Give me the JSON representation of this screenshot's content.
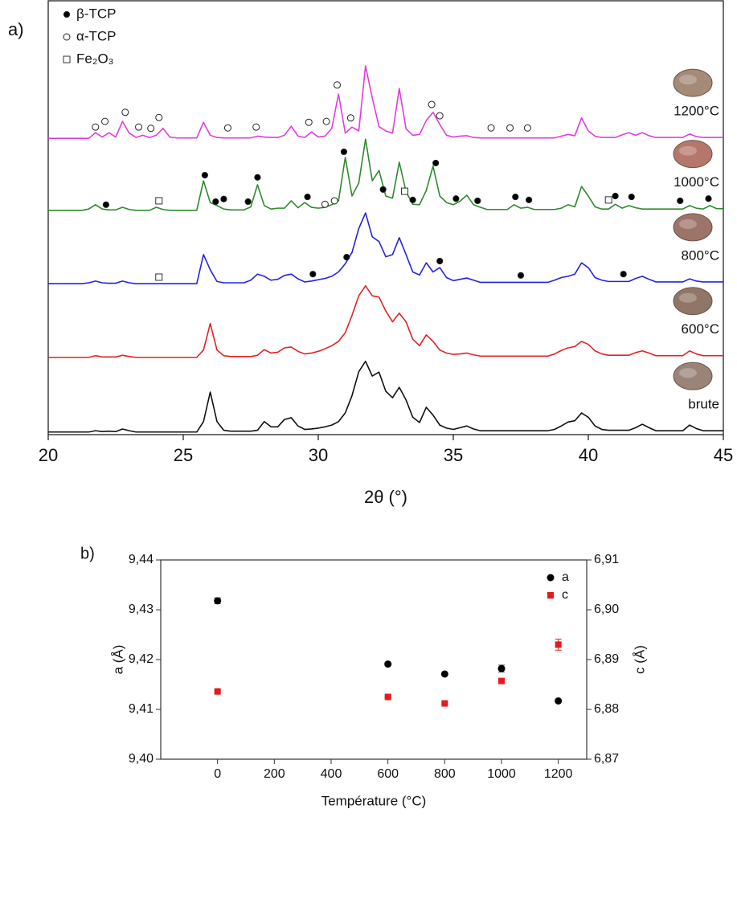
{
  "chart_data": [
    {
      "type": "line",
      "panel_label": "a)",
      "xlabel": "2θ (°)",
      "xlim": [
        20,
        45
      ],
      "xticks": [
        20,
        25,
        30,
        35,
        40,
        45
      ],
      "ylim": [
        0,
        100
      ],
      "x": [
        20,
        20.25,
        20.5,
        20.75,
        21,
        21.25,
        21.5,
        21.75,
        22,
        22.25,
        22.5,
        22.75,
        23,
        23.25,
        23.5,
        23.75,
        24,
        24.25,
        24.5,
        24.75,
        25,
        25.25,
        25.5,
        25.75,
        26,
        26.25,
        26.5,
        26.75,
        27,
        27.25,
        27.5,
        27.75,
        28,
        28.25,
        28.5,
        28.75,
        29,
        29.25,
        29.5,
        29.75,
        30,
        30.25,
        30.5,
        30.75,
        31,
        31.25,
        31.5,
        31.75,
        32,
        32.25,
        32.5,
        32.75,
        33,
        33.25,
        33.5,
        33.75,
        34,
        34.25,
        34.5,
        34.75,
        35,
        35.25,
        35.5,
        35.75,
        36,
        36.25,
        36.5,
        36.75,
        37,
        37.25,
        37.5,
        37.75,
        38,
        38.25,
        38.5,
        38.75,
        39,
        39.25,
        39.5,
        39.75,
        40,
        40.25,
        40.5,
        40.75,
        41,
        41.25,
        41.5,
        41.75,
        42,
        42.25,
        42.5,
        42.75,
        43,
        43.25,
        43.5,
        43.75,
        44,
        44.25,
        44.5,
        44.75,
        45
      ],
      "series": [
        {
          "name": "1200°C",
          "color": "#e33be3",
          "values": [
            68.3,
            68.3,
            68.3,
            68.3,
            68.3,
            68.3,
            68.3,
            69.6,
            68.6,
            69.6,
            68.6,
            72.2,
            69.5,
            68.5,
            69.0,
            68.5,
            69.0,
            70.6,
            68.6,
            68.4,
            68.4,
            68.4,
            68.4,
            72.0,
            69.0,
            68.5,
            68.4,
            68.4,
            68.4,
            68.4,
            68.4,
            68.8,
            68.6,
            68.5,
            68.5,
            69.0,
            71.1,
            68.8,
            68.5,
            69.8,
            68.6,
            68.8,
            70.6,
            78.5,
            69.5,
            70.9,
            70.0,
            85.0,
            77.6,
            71.0,
            70.0,
            69.5,
            79.8,
            70.5,
            69.0,
            69.2,
            72.4,
            74.3,
            71.5,
            69.0,
            68.6,
            68.8,
            68.9,
            68.5,
            68.4,
            68.4,
            68.4,
            68.4,
            68.4,
            68.4,
            68.4,
            68.4,
            68.4,
            68.4,
            68.4,
            68.4,
            68.8,
            69.2,
            68.9,
            73.0,
            70.0,
            68.8,
            68.5,
            68.5,
            68.5,
            69.1,
            69.6,
            69.0,
            69.6,
            68.9,
            68.5,
            68.5,
            68.5,
            68.5,
            68.5,
            69.3,
            68.7,
            68.5,
            68.5,
            68.5,
            68.5
          ]
        },
        {
          "name": "1000°C",
          "color": "#2e8b2e",
          "values": [
            51.7,
            51.7,
            51.7,
            51.7,
            51.7,
            51.7,
            52.0,
            53.0,
            52.0,
            51.8,
            51.8,
            52.4,
            51.9,
            51.7,
            51.7,
            51.7,
            52.4,
            51.9,
            51.7,
            51.7,
            51.7,
            51.7,
            51.7,
            58.5,
            53.5,
            52.8,
            52.0,
            51.8,
            51.8,
            51.8,
            52.5,
            57.6,
            52.8,
            52.0,
            52.2,
            52.2,
            53.9,
            52.3,
            53.5,
            52.4,
            52.2,
            52.4,
            53.0,
            53.9,
            63.9,
            55.0,
            58.0,
            68.1,
            58.5,
            60.9,
            55.0,
            54.5,
            62.8,
            56.0,
            53.1,
            53.0,
            56.3,
            61.9,
            55.0,
            53.5,
            53.0,
            53.8,
            55.2,
            53.0,
            52.4,
            51.9,
            51.9,
            51.9,
            51.9,
            53.0,
            52.2,
            52.4,
            51.9,
            51.9,
            51.9,
            51.9,
            52.2,
            53.0,
            52.5,
            57.2,
            55.0,
            52.5,
            52.0,
            52.0,
            53.1,
            52.2,
            52.8,
            52.3,
            52.0,
            52.0,
            52.0,
            52.0,
            52.0,
            52.0,
            52.0,
            52.8,
            52.2,
            52.0,
            52.8,
            52.1,
            52.1
          ]
        },
        {
          "name": "800°C",
          "color": "#2323e6",
          "values": [
            34.8,
            34.8,
            34.8,
            34.8,
            34.8,
            34.8,
            35.0,
            35.4,
            35.0,
            34.9,
            34.9,
            35.4,
            35.0,
            34.8,
            34.8,
            34.8,
            34.8,
            34.8,
            34.8,
            34.8,
            34.8,
            34.8,
            34.8,
            41.5,
            38.0,
            35.3,
            35.0,
            35.0,
            35.0,
            35.0,
            35.6,
            37.0,
            36.5,
            35.6,
            35.8,
            36.7,
            37.0,
            35.9,
            35.2,
            35.4,
            35.7,
            36.0,
            36.5,
            37.5,
            39.4,
            42.0,
            47.5,
            51.1,
            45.6,
            44.5,
            41.0,
            41.5,
            45.4,
            41.5,
            37.5,
            36.8,
            39.6,
            37.5,
            38.5,
            36.2,
            35.5,
            35.8,
            36.1,
            35.6,
            35.1,
            35.1,
            35.1,
            35.1,
            35.1,
            35.1,
            35.1,
            35.1,
            35.1,
            35.1,
            35.1,
            35.6,
            36.2,
            36.5,
            37.0,
            39.6,
            38.5,
            36.2,
            35.6,
            35.3,
            35.3,
            35.3,
            35.3,
            36.0,
            36.5,
            35.8,
            35.2,
            35.2,
            35.2,
            35.2,
            35.2,
            35.9,
            35.4,
            35.2,
            35.2,
            35.2,
            35.2
          ]
        },
        {
          "name": "600°C",
          "color": "#e52222",
          "values": [
            17.8,
            17.8,
            17.8,
            17.8,
            17.8,
            17.8,
            17.8,
            18.2,
            17.9,
            17.9,
            17.9,
            18.3,
            18.0,
            17.8,
            17.8,
            17.8,
            17.8,
            17.8,
            17.8,
            17.8,
            17.8,
            17.8,
            17.8,
            19.5,
            25.6,
            19.5,
            18.2,
            18.0,
            18.0,
            18.0,
            18.0,
            18.3,
            19.6,
            18.8,
            19.0,
            20.0,
            20.2,
            19.2,
            18.6,
            18.8,
            19.2,
            19.8,
            20.5,
            21.5,
            23.5,
            27.5,
            32.0,
            34.3,
            32.0,
            31.7,
            28.5,
            26.0,
            28.0,
            26.0,
            22.0,
            20.5,
            23.0,
            21.5,
            19.5,
            18.8,
            18.5,
            18.6,
            18.8,
            18.4,
            18.1,
            18.1,
            18.1,
            18.1,
            18.1,
            18.1,
            18.1,
            18.1,
            18.1,
            18.1,
            18.1,
            18.6,
            19.4,
            20.0,
            20.3,
            21.5,
            20.8,
            19.3,
            18.6,
            18.3,
            18.3,
            18.3,
            18.3,
            18.9,
            19.3,
            18.8,
            18.2,
            18.2,
            18.2,
            18.2,
            18.2,
            19.3,
            18.6,
            18.2,
            18.2,
            18.2,
            18.2
          ]
        },
        {
          "name": "brute",
          "color": "#111111",
          "values": [
            0.6,
            0.6,
            0.6,
            0.6,
            0.6,
            0.6,
            0.6,
            0.9,
            0.7,
            0.8,
            0.7,
            1.3,
            0.9,
            0.6,
            0.6,
            0.6,
            0.6,
            0.6,
            0.6,
            0.6,
            0.6,
            0.6,
            0.6,
            3.0,
            9.8,
            3.0,
            1.0,
            0.8,
            0.8,
            0.8,
            0.8,
            1.0,
            3.0,
            1.8,
            1.8,
            3.5,
            3.9,
            2.0,
            1.2,
            1.3,
            1.5,
            1.8,
            2.2,
            3.0,
            5.0,
            9.0,
            14.5,
            16.9,
            13.5,
            14.4,
            10.0,
            8.5,
            10.9,
            8.0,
            4.0,
            2.8,
            6.3,
            4.5,
            2.2,
            1.5,
            1.2,
            1.6,
            2.0,
            1.3,
            0.9,
            0.9,
            0.9,
            0.9,
            0.9,
            0.9,
            0.9,
            0.9,
            0.9,
            0.9,
            0.9,
            1.2,
            2.0,
            2.9,
            3.2,
            5.0,
            4.0,
            2.0,
            1.2,
            1.0,
            1.0,
            1.0,
            1.0,
            1.6,
            2.4,
            1.6,
            0.9,
            0.9,
            0.9,
            0.9,
            0.9,
            2.2,
            1.4,
            0.9,
            0.9,
            0.9,
            0.9
          ]
        }
      ],
      "markers": [
        {
          "name": "β-TCP",
          "marker": "filled-circle",
          "x": [
            22.14,
            25.8,
            26.2,
            26.5,
            27.4,
            27.75,
            29.6,
            30.95,
            32.4,
            33.5,
            34.35,
            35.1,
            35.9,
            37.3,
            37.8,
            41.0,
            41.6,
            43.4,
            44.45,
            29.8,
            31.05,
            34.5,
            37.5,
            41.3
          ],
          "y": [
            53.0,
            59.8,
            53.7,
            54.3,
            53.7,
            59.3,
            54.8,
            65.2,
            56.5,
            54.1,
            62.6,
            54.4,
            53.9,
            54.8,
            54.1,
            55.0,
            54.8,
            53.9,
            54.4,
            37.0,
            40.9,
            40.0,
            36.7,
            37.0
          ]
        },
        {
          "name": "α-TCP",
          "marker": "open-circle",
          "x": [
            21.75,
            22.1,
            22.85,
            23.35,
            23.8,
            24.1,
            26.65,
            27.7,
            29.65,
            30.3,
            30.7,
            31.2,
            34.2,
            34.5,
            36.4,
            37.1,
            37.75,
            30.25,
            30.6
          ],
          "y": [
            70.9,
            72.2,
            74.3,
            70.9,
            70.6,
            73.1,
            70.7,
            70.9,
            72.0,
            72.2,
            80.6,
            73.0,
            76.1,
            73.5,
            70.7,
            70.7,
            70.7,
            53.1,
            53.9
          ]
        },
        {
          "name": "Fe₂O₃",
          "marker": "open-square",
          "x": [
            24.1,
            33.2,
            40.75,
            24.1
          ],
          "y": [
            53.9,
            56.1,
            54.1,
            36.3
          ]
        }
      ]
    },
    {
      "type": "scatter",
      "panel_label": "b)",
      "xlabel": "Température (°C)",
      "ylabel": "a (Å)",
      "y2label": "c (Å)",
      "xlim": [
        -200,
        1300
      ],
      "xticks": [
        0,
        200,
        400,
        600,
        800,
        1000,
        1200
      ],
      "ylim": [
        9.4,
        9.44
      ],
      "yticks": [
        {
          "value": 9.4,
          "label": "9,40"
        },
        {
          "value": 9.41,
          "label": "9,41"
        },
        {
          "value": 9.42,
          "label": "9,42"
        },
        {
          "value": 9.43,
          "label": "9,43"
        },
        {
          "value": 9.44,
          "label": "9,44"
        }
      ],
      "y2lim": [
        6.87,
        6.91
      ],
      "y2ticks": [
        {
          "value": 6.87,
          "label": "6,87"
        },
        {
          "value": 6.88,
          "label": "6,88"
        },
        {
          "value": 6.89,
          "label": "6,89"
        },
        {
          "value": 6.9,
          "label": "6,90"
        },
        {
          "value": 6.91,
          "label": "6,91"
        }
      ],
      "legend": "upper right",
      "series": [
        {
          "name": "a",
          "color": "#000000",
          "marker": "circle",
          "x": [
            0,
            600,
            800,
            1000,
            1200
          ],
          "values": [
            9.4318,
            9.4191,
            9.4171,
            9.4182,
            9.4117
          ],
          "errors": [
            0.0006,
            0.0002,
            0.0002,
            0.0007,
            0.0002
          ]
        },
        {
          "name": "c",
          "color": "#e41a1c",
          "marker": "square",
          "axis": "y2",
          "x": [
            0,
            600,
            800,
            1000,
            1200
          ],
          "values": [
            6.8836,
            6.8825,
            6.8812,
            6.8857,
            6.893
          ],
          "errors": [
            0.0003,
            0.0002,
            0.0002,
            0.0005,
            0.0011
          ]
        }
      ]
    }
  ]
}
